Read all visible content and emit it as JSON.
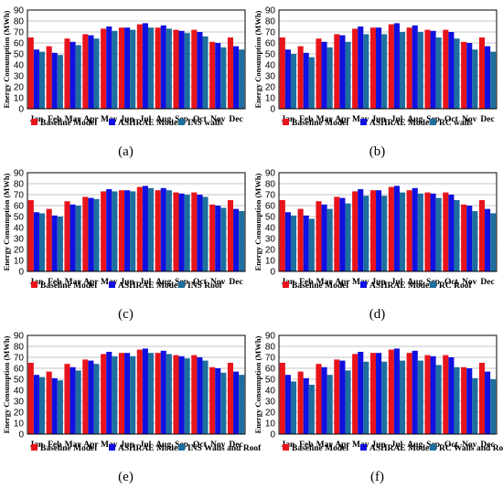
{
  "figure": {
    "captions": [
      "(a)",
      "(b)",
      "(c)",
      "(d)",
      "(e)",
      "(f)"
    ]
  },
  "colors": {
    "baseline": "#e8141b",
    "ashrae": "#1010e0",
    "variant": "#1e6e9e",
    "grid": "#b0b0b0",
    "frame": "#000000"
  },
  "chart_data": [
    {
      "type": "bar",
      "caption": "(a)",
      "ylabel": "Energy Consumption (MWh)",
      "ylim": [
        0,
        90
      ],
      "yticks": [
        0,
        10,
        20,
        30,
        40,
        50,
        60,
        70,
        80,
        90
      ],
      "grid": true,
      "legend_position": "bottom",
      "categories": [
        "Jan",
        "Feb",
        "Mar",
        "Apr",
        "May",
        "Jun",
        "Jul",
        "Aug",
        "Sep",
        "Oct",
        "Nov",
        "Dec"
      ],
      "series": [
        {
          "name": "Baseline Model",
          "values": [
            65,
            57,
            64,
            68,
            73,
            74,
            77,
            74,
            72,
            72,
            61,
            65
          ]
        },
        {
          "name": "ASHRAE Model",
          "values": [
            54,
            51,
            61,
            67,
            75,
            74,
            78,
            76,
            71,
            70,
            60,
            57
          ]
        },
        {
          "name": "INS  walls",
          "values": [
            52,
            49,
            58,
            64,
            71,
            72,
            74,
            73,
            69,
            66,
            56,
            54
          ]
        }
      ]
    },
    {
      "type": "bar",
      "caption": "(b)",
      "ylabel": "Energy Consumption (MWh)",
      "ylim": [
        0,
        90
      ],
      "yticks": [
        0,
        10,
        20,
        30,
        40,
        50,
        60,
        70,
        80,
        90
      ],
      "grid": true,
      "legend_position": "bottom",
      "categories": [
        "Jan",
        "Feb",
        "Mar",
        "Apr",
        "May",
        "Jun",
        "Jul",
        "Aug",
        "Sep",
        "Oct",
        "Nov",
        "Dec"
      ],
      "series": [
        {
          "name": "Baseline Model",
          "values": [
            65,
            57,
            64,
            68,
            73,
            74,
            77,
            74,
            72,
            72,
            61,
            65
          ]
        },
        {
          "name": "ASHRAE Model",
          "values": [
            54,
            51,
            61,
            67,
            75,
            74,
            78,
            76,
            71,
            70,
            60,
            57
          ]
        },
        {
          "name": "RC walls",
          "values": [
            50,
            47,
            56,
            61,
            68,
            68,
            70,
            70,
            65,
            64,
            54,
            52
          ]
        }
      ]
    },
    {
      "type": "bar",
      "caption": "(c)",
      "ylabel": "Energy Consumption (MWh)",
      "ylim": [
        0,
        90
      ],
      "yticks": [
        0,
        10,
        20,
        30,
        40,
        50,
        60,
        70,
        80,
        90
      ],
      "grid": true,
      "legend_position": "bottom",
      "categories": [
        "Jan",
        "Feb",
        "Mar",
        "Apr",
        "May",
        "Jun",
        "Jul",
        "Aug",
        "Sep",
        "Oct",
        "Nov",
        "Dec"
      ],
      "series": [
        {
          "name": "Baseline Model",
          "values": [
            65,
            57,
            64,
            68,
            73,
            74,
            77,
            74,
            72,
            72,
            61,
            65
          ]
        },
        {
          "name": "ASHRAE Model",
          "values": [
            54,
            51,
            61,
            67,
            75,
            74,
            78,
            76,
            71,
            70,
            60,
            57
          ]
        },
        {
          "name": "INS Roof",
          "values": [
            53,
            50,
            60,
            66,
            73,
            73,
            76,
            74,
            70,
            68,
            58,
            55
          ]
        }
      ]
    },
    {
      "type": "bar",
      "caption": "(d)",
      "ylabel": "Energy Consumption (MWh)",
      "ylim": [
        0,
        90
      ],
      "yticks": [
        0,
        10,
        20,
        30,
        40,
        50,
        60,
        70,
        80,
        90
      ],
      "grid": true,
      "legend_position": "bottom",
      "categories": [
        "Jan",
        "Feb",
        "Mar",
        "Apr",
        "May",
        "Jun",
        "Jul",
        "Aug",
        "Sep",
        "Oct",
        "Nov",
        "Dec"
      ],
      "series": [
        {
          "name": "Baseline Model",
          "values": [
            65,
            57,
            64,
            68,
            73,
            74,
            77,
            74,
            72,
            72,
            61,
            65
          ]
        },
        {
          "name": "ASHRAE Model",
          "values": [
            54,
            51,
            61,
            67,
            75,
            74,
            78,
            76,
            71,
            70,
            60,
            57
          ]
        },
        {
          "name": "RC Roof",
          "values": [
            51,
            48,
            57,
            62,
            69,
            69,
            72,
            71,
            67,
            65,
            55,
            53
          ]
        }
      ]
    },
    {
      "type": "bar",
      "caption": "(e)",
      "ylabel": "Energy Consumption (MWh)",
      "ylim": [
        0,
        90
      ],
      "yticks": [
        0,
        10,
        20,
        30,
        40,
        50,
        60,
        70,
        80,
        90
      ],
      "grid": true,
      "legend_position": "bottom",
      "categories": [
        "Jan",
        "Feb",
        "Mar",
        "Apr",
        "May",
        "Jun",
        "Jul",
        "Aug",
        "Sep",
        "Oct",
        "Nov",
        "Dec"
      ],
      "series": [
        {
          "name": "Baseline Model",
          "values": [
            65,
            57,
            64,
            68,
            73,
            74,
            77,
            74,
            72,
            72,
            61,
            65
          ]
        },
        {
          "name": "ASHRAE Model",
          "values": [
            54,
            51,
            61,
            67,
            75,
            74,
            78,
            76,
            71,
            70,
            60,
            57
          ]
        },
        {
          "name": "INS Walls and Roof",
          "values": [
            52,
            49,
            58,
            64,
            71,
            71,
            74,
            73,
            69,
            67,
            56,
            54
          ]
        }
      ]
    },
    {
      "type": "bar",
      "caption": "(f)",
      "ylabel": "Energy Consumption (MWh)",
      "ylim": [
        0,
        90
      ],
      "yticks": [
        0,
        10,
        20,
        30,
        40,
        50,
        60,
        70,
        80,
        90
      ],
      "grid": true,
      "legend_position": "bottom",
      "categories": [
        "Jan",
        "Feb",
        "Mar",
        "Apr",
        "May",
        "Jun",
        "Jul",
        "Aug",
        "Sep",
        "Oct",
        "Nov",
        "Dec"
      ],
      "series": [
        {
          "name": "Baseline Model",
          "values": [
            65,
            57,
            64,
            68,
            73,
            74,
            77,
            74,
            72,
            72,
            61,
            65
          ]
        },
        {
          "name": "ASHRAE Model",
          "values": [
            54,
            51,
            61,
            67,
            75,
            74,
            78,
            76,
            71,
            70,
            60,
            57
          ]
        },
        {
          "name": "RC Walls and Roof",
          "values": [
            48,
            45,
            54,
            58,
            66,
            66,
            67,
            67,
            63,
            61,
            51,
            50
          ]
        }
      ]
    }
  ]
}
